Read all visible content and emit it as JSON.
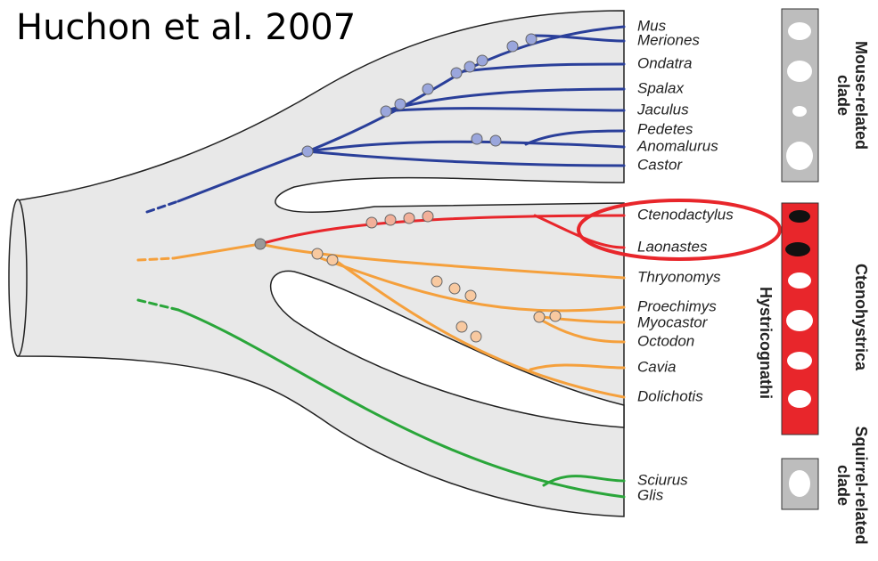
{
  "header": {
    "title": "Huchon et al. 2007"
  },
  "taxa": [
    "Mus",
    "Meriones",
    "Ondatra",
    "Spalax",
    "Jaculus",
    "Pedetes",
    "Anomalurus",
    "Castor",
    "Ctenodactylus",
    "Laonastes",
    "Thryonomys",
    "Proechimys",
    "Myocastor",
    "Octodon",
    "Cavia",
    "Dolichotis",
    "Sciurus",
    "Glis"
  ],
  "clades": {
    "mouse_related": [
      "Mouse-related",
      "clade"
    ],
    "ctenohystrica": "Ctenohystrica",
    "hystricognathi": "Hystricognathi",
    "squirrel_related": [
      "Squirrel-related",
      "clade"
    ]
  }
}
